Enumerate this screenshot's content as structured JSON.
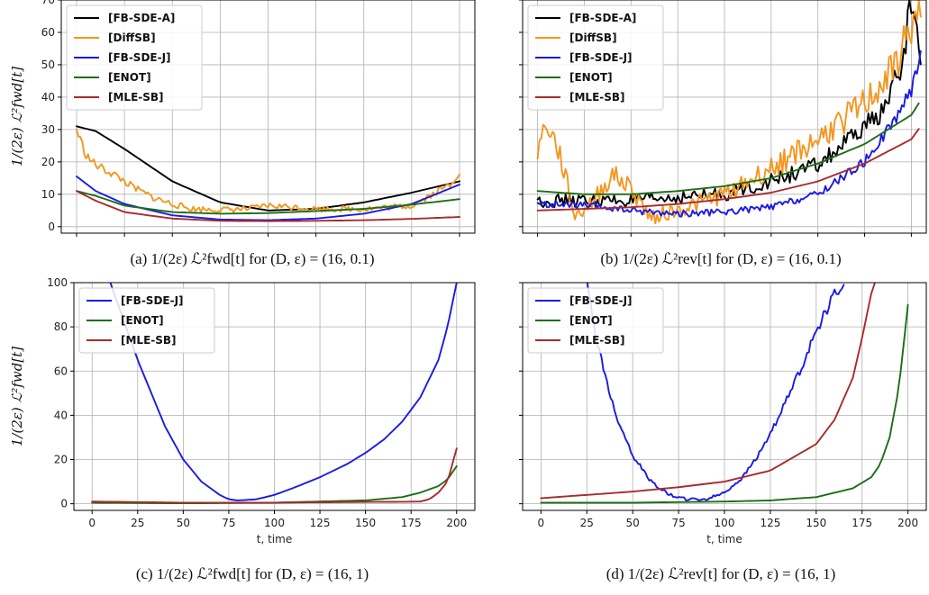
{
  "colors": {
    "FB-SDE-A": "#000000",
    "DiffSB": "#f5961e",
    "FB-SDE-J": "#1a1ae6",
    "ENOT": "#1d6e16",
    "MLE-SB": "#a82b2b"
  },
  "chart_data": [
    {
      "id": "a",
      "type": "line",
      "caption": "(a) 1/(2ε) ℒ²fwd[t] for (D, ε) = (16, 0.1)",
      "ylabel": "1/(2ε) ℒ²fwd[t]",
      "xlabel": "",
      "xlim": [
        -8,
        208
      ],
      "ylim": [
        -2,
        70
      ],
      "xticks": [
        0,
        25,
        50,
        75,
        100,
        125,
        150,
        175,
        200
      ],
      "show_xtick_labels": false,
      "yticks": [
        0,
        10,
        20,
        30,
        40,
        50,
        60,
        70
      ],
      "show_ytick_labels": true,
      "grid": true,
      "legend_position": "top-left",
      "series": [
        {
          "name": "[FB-SDE-A]",
          "color_key": "FB-SDE-A",
          "noise": 0,
          "x": [
            0,
            10,
            25,
            50,
            75,
            100,
            125,
            150,
            175,
            200
          ],
          "y": [
            31,
            29.5,
            24,
            14,
            7.5,
            5,
            5.5,
            7.5,
            10.5,
            14
          ]
        },
        {
          "name": "[DiffSB]",
          "color_key": "DiffSB",
          "noise": 0.8,
          "x": [
            0,
            5,
            10,
            20,
            30,
            40,
            50,
            60,
            75,
            90,
            100,
            110,
            125,
            150,
            175,
            195,
            200
          ],
          "y": [
            30,
            22,
            19,
            16,
            12,
            9,
            7,
            5.5,
            5.2,
            5.5,
            6.5,
            6.2,
            5.5,
            5.5,
            6.5,
            13,
            17
          ]
        },
        {
          "name": "[FB-SDE-J]",
          "color_key": "FB-SDE-J",
          "noise": 0,
          "x": [
            0,
            10,
            25,
            50,
            75,
            100,
            125,
            150,
            175,
            200
          ],
          "y": [
            15.5,
            11,
            7,
            3.5,
            2.2,
            2,
            2.5,
            4,
            7,
            13
          ]
        },
        {
          "name": "[ENOT]",
          "color_key": "ENOT",
          "noise": 0,
          "x": [
            0,
            10,
            25,
            50,
            75,
            100,
            125,
            150,
            175,
            200
          ],
          "y": [
            11,
            9.5,
            6.5,
            4.5,
            4,
            4.2,
            4.8,
            5.5,
            6.8,
            8.5
          ]
        },
        {
          "name": "[MLE-SB]",
          "color_key": "MLE-SB",
          "noise": 0,
          "x": [
            0,
            10,
            25,
            50,
            75,
            100,
            125,
            150,
            175,
            200
          ],
          "y": [
            11,
            8,
            4.5,
            2.5,
            1.8,
            1.7,
            1.8,
            2,
            2.4,
            3
          ]
        }
      ]
    },
    {
      "id": "b",
      "type": "line",
      "caption": "(b) 1/(2ε) ℒ²rev[t] for (D, ε) = (16, 0.1)",
      "ylabel": "",
      "xlabel": "",
      "xlim": [
        -8,
        208
      ],
      "ylim": [
        -2,
        70
      ],
      "xticks": [
        0,
        25,
        50,
        75,
        100,
        125,
        150,
        175,
        200
      ],
      "show_xtick_labels": false,
      "yticks": [
        0,
        10,
        20,
        30,
        40,
        50,
        60,
        70
      ],
      "show_ytick_labels": false,
      "grid": true,
      "legend_position": "top-left",
      "series": [
        {
          "name": "[FB-SDE-A]",
          "color_key": "FB-SDE-A",
          "noise": 1.6,
          "x": [
            0,
            25,
            50,
            75,
            100,
            125,
            150,
            170,
            185,
            195,
            200,
            205
          ],
          "y": [
            8,
            8,
            8,
            9,
            10,
            14,
            19,
            28,
            36,
            50,
            70,
            52
          ]
        },
        {
          "name": "[DiffSB]",
          "color_key": "DiffSB",
          "noise": 2.2,
          "x": [
            0,
            5,
            12,
            20,
            30,
            40,
            50,
            60,
            75,
            100,
            125,
            150,
            175,
            190,
            200,
            205
          ],
          "y": [
            24,
            32,
            22,
            3,
            8,
            16,
            12,
            3,
            5,
            10,
            18,
            27,
            38,
            48,
            62,
            66
          ]
        },
        {
          "name": "[FB-SDE-J]",
          "color_key": "FB-SDE-J",
          "noise": 0.9,
          "x": [
            0,
            25,
            50,
            75,
            100,
            125,
            150,
            175,
            190,
            200,
            205
          ],
          "y": [
            7,
            6.5,
            5,
            4,
            4.5,
            6,
            10,
            20,
            32,
            42,
            54
          ]
        },
        {
          "name": "[ENOT]",
          "color_key": "ENOT",
          "noise": 0,
          "x": [
            0,
            25,
            50,
            75,
            100,
            125,
            150,
            175,
            200,
            205
          ],
          "y": [
            11,
            10,
            10,
            11,
            12.5,
            15,
            19.5,
            25.5,
            34.5,
            39
          ]
        },
        {
          "name": "[MLE-SB]",
          "color_key": "MLE-SB",
          "noise": 0,
          "x": [
            0,
            25,
            50,
            75,
            100,
            125,
            150,
            175,
            200,
            205
          ],
          "y": [
            5,
            5.5,
            6,
            7,
            8.5,
            10.5,
            14,
            19.5,
            27,
            31
          ]
        }
      ]
    },
    {
      "id": "c",
      "type": "line",
      "caption": "(c) 1/(2ε) ℒ²fwd[t] for (D, ε) = (16, 1)",
      "ylabel": "1/(2ε) ℒ²fwd[t]",
      "xlabel": "t, time",
      "xlim": [
        -10,
        210
      ],
      "ylim": [
        -3,
        100
      ],
      "xticks": [
        0,
        25,
        50,
        75,
        100,
        125,
        150,
        175,
        200
      ],
      "show_xtick_labels": true,
      "yticks": [
        0,
        20,
        40,
        60,
        80,
        100
      ],
      "show_ytick_labels": true,
      "grid": true,
      "legend_position": "top-left",
      "series": [
        {
          "name": "[FB-SDE-J]",
          "color_key": "FB-SDE-J",
          "noise": 0,
          "x": [
            10,
            25,
            40,
            50,
            60,
            70,
            75,
            80,
            90,
            100,
            110,
            125,
            140,
            150,
            160,
            170,
            180,
            190,
            195,
            200
          ],
          "y": [
            100,
            65,
            35,
            20,
            10,
            4,
            2,
            1.5,
            2,
            4,
            7,
            12,
            18,
            23,
            29,
            37,
            48,
            65,
            80,
            100
          ]
        },
        {
          "name": "[ENOT]",
          "color_key": "ENOT",
          "noise": 0,
          "x": [
            0,
            50,
            100,
            150,
            170,
            180,
            190,
            195,
            200
          ],
          "y": [
            0.5,
            0.2,
            0.5,
            1.5,
            3,
            5,
            8,
            11,
            17
          ]
        },
        {
          "name": "[MLE-SB]",
          "color_key": "MLE-SB",
          "noise": 0,
          "x": [
            0,
            50,
            100,
            150,
            170,
            180,
            185,
            190,
            195,
            200
          ],
          "y": [
            1,
            0.5,
            0.5,
            0.8,
            0.9,
            1,
            2,
            5,
            10,
            25
          ]
        }
      ]
    },
    {
      "id": "d",
      "type": "line",
      "caption": "(d) 1/(2ε) ℒ²rev[t] for (D, ε) = (16, 1)",
      "ylabel": "",
      "xlabel": "t, time",
      "xlim": [
        -10,
        210
      ],
      "ylim": [
        -3,
        100
      ],
      "xticks": [
        0,
        25,
        50,
        75,
        100,
        125,
        150,
        175,
        200
      ],
      "show_xtick_labels": true,
      "yticks": [
        0,
        20,
        40,
        60,
        80,
        100
      ],
      "show_ytick_labels": false,
      "grid": true,
      "legend_position": "top-left",
      "series": [
        {
          "name": "[FB-SDE-J]",
          "color_key": "FB-SDE-J",
          "noise": 0.6,
          "x": [
            25,
            30,
            40,
            50,
            60,
            70,
            80,
            90,
            100,
            110,
            120,
            130,
            140,
            150,
            160,
            165
          ],
          "y": [
            100,
            75,
            42,
            22,
            10,
            4,
            2,
            2,
            5,
            12,
            24,
            40,
            58,
            78,
            95,
            100
          ]
        },
        {
          "name": "[ENOT]",
          "color_key": "ENOT",
          "noise": 0,
          "x": [
            0,
            50,
            100,
            125,
            150,
            170,
            180,
            185,
            190,
            195,
            200
          ],
          "y": [
            0.5,
            0.5,
            1,
            1.5,
            3,
            7,
            12,
            18,
            30,
            52,
            90
          ]
        },
        {
          "name": "[MLE-SB]",
          "color_key": "MLE-SB",
          "noise": 0,
          "x": [
            0,
            25,
            50,
            75,
            100,
            125,
            150,
            160,
            170,
            175,
            180,
            182
          ],
          "y": [
            2.5,
            4,
            5.5,
            7.5,
            10,
            15,
            27,
            38,
            57,
            75,
            95,
            100
          ]
        }
      ]
    }
  ]
}
